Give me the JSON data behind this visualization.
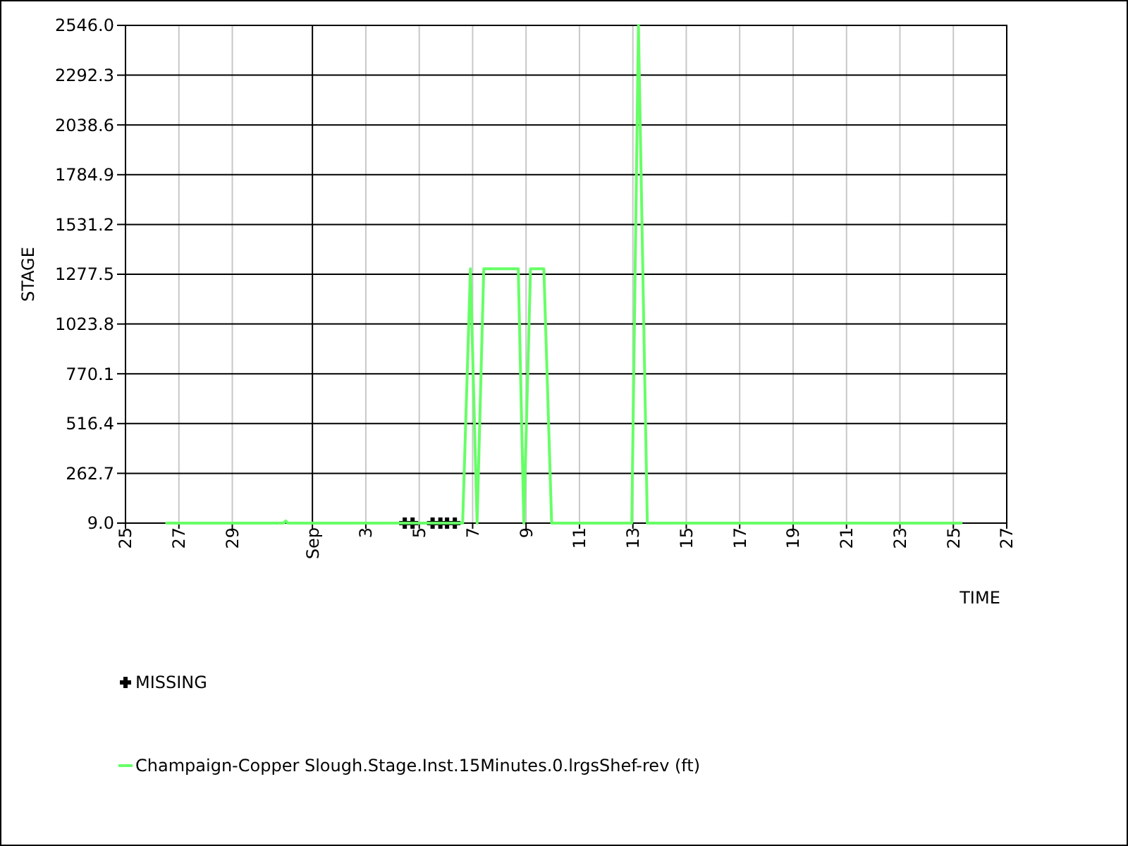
{
  "chart_data": {
    "type": "line",
    "xlabel": "TIME",
    "ylabel": "STAGE",
    "xlim": [
      "--08-25",
      "--09-27"
    ],
    "ylim": [
      9,
      2546
    ],
    "xticks": [
      {
        "value": "--08-25",
        "label": "25"
      },
      {
        "value": "--08-27",
        "label": "27"
      },
      {
        "value": "--08-29",
        "label": "29"
      },
      {
        "value": "--09-01",
        "label": "Sep"
      },
      {
        "value": "--09-03",
        "label": "3"
      },
      {
        "value": "--09-05",
        "label": "5"
      },
      {
        "value": "--09-07",
        "label": "7"
      },
      {
        "value": "--09-09",
        "label": "9"
      },
      {
        "value": "--09-11",
        "label": "11"
      },
      {
        "value": "--09-13",
        "label": "13"
      },
      {
        "value": "--09-15",
        "label": "15"
      },
      {
        "value": "--09-17",
        "label": "17"
      },
      {
        "value": "--09-19",
        "label": "19"
      },
      {
        "value": "--09-21",
        "label": "21"
      },
      {
        "value": "--09-23",
        "label": "23"
      },
      {
        "value": "--09-25",
        "label": "25"
      },
      {
        "value": "--09-27",
        "label": "27"
      }
    ],
    "yticks": [
      {
        "value": 9,
        "label": "9.0"
      },
      {
        "value": 262.7,
        "label": "262.7"
      },
      {
        "value": 516.4,
        "label": "516.4"
      },
      {
        "value": 770.1,
        "label": "770.1"
      },
      {
        "value": 1023.8,
        "label": "1023.8"
      },
      {
        "value": 1277.5,
        "label": "1277.5"
      },
      {
        "value": 1531.2,
        "label": "1531.2"
      },
      {
        "value": 1784.9,
        "label": "1784.9"
      },
      {
        "value": 2038.6,
        "label": "2038.6"
      },
      {
        "value": 2292.3,
        "label": "2292.3"
      },
      {
        "value": 2546,
        "label": "2546.0"
      }
    ],
    "grid": true,
    "legend": "bottom",
    "series": [
      {
        "name": "MISSING",
        "type": "scatter",
        "marker": "cross",
        "color": "#000000",
        "x": [
          "--09-04T11:00",
          "--09-04T18:00",
          "--09-05T12:00",
          "--09-05T19:00",
          "--09-06T01:00",
          "--09-06T08:00"
        ],
        "values": [
          9,
          9,
          9,
          9,
          9,
          9
        ]
      },
      {
        "name": "Champaign-Copper Slough.Stage.Inst.15Minutes.0.lrgsShef-rev (ft)",
        "marker": "none",
        "color": "#66ff66",
        "x": [
          "--08-26T13:00",
          "--08-30T22:00",
          "--08-31T00:00",
          "--08-31T02:00",
          "--09-06T15:00",
          "--09-06T22:00",
          "--09-07T04:00",
          "--09-07T10:00",
          "--09-08T17:00",
          "--09-08T22:00",
          "--09-09T04:00",
          "--09-09T16:00",
          "--09-09T23:00",
          "--09-12T23:00",
          "--09-13T05:00",
          "--09-13T13:00",
          "--09-25T07:00"
        ],
        "values": [
          9,
          9,
          20,
          9,
          9,
          1305,
          9,
          1305,
          1305,
          9,
          1305,
          1305,
          9,
          9,
          2546,
          9,
          9
        ]
      }
    ]
  }
}
